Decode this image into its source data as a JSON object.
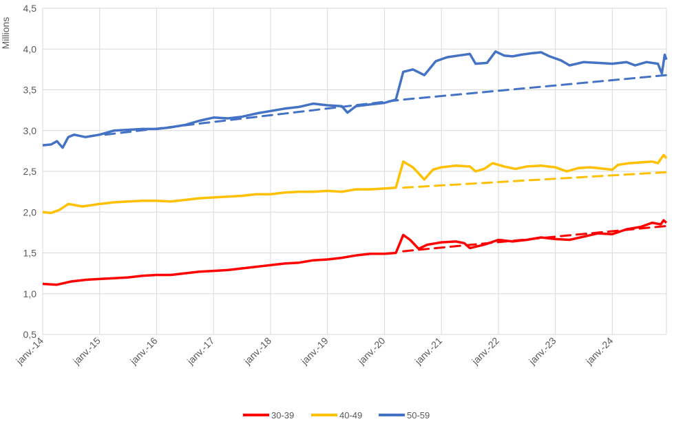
{
  "chart_data": {
    "type": "line",
    "ylabel": "Millions",
    "ylim": [
      0.5,
      4.5
    ],
    "yticks": [
      "0,5",
      "1,0",
      "1,5",
      "2,0",
      "2,5",
      "3,0",
      "3,5",
      "4,0",
      "4,5"
    ],
    "xticks": [
      "janv.-14",
      "janv.-15",
      "janv.-16",
      "janv.-17",
      "janv.-18",
      "janv.-19",
      "janv.-20",
      "janv.-21",
      "janv.-22",
      "janv.-23",
      "janv.-24"
    ],
    "xlim": [
      2014.0,
      2024.95
    ],
    "grid": true,
    "legend_position": "bottom",
    "series": [
      {
        "name": "30-39",
        "color": "#ff0000",
        "points": [
          [
            2014.0,
            1.12
          ],
          [
            2014.25,
            1.11
          ],
          [
            2014.5,
            1.15
          ],
          [
            2014.75,
            1.17
          ],
          [
            2015.0,
            1.18
          ],
          [
            2015.25,
            1.19
          ],
          [
            2015.5,
            1.2
          ],
          [
            2015.75,
            1.22
          ],
          [
            2016.0,
            1.23
          ],
          [
            2016.25,
            1.23
          ],
          [
            2016.5,
            1.25
          ],
          [
            2016.75,
            1.27
          ],
          [
            2017.0,
            1.28
          ],
          [
            2017.25,
            1.29
          ],
          [
            2017.5,
            1.31
          ],
          [
            2017.75,
            1.33
          ],
          [
            2018.0,
            1.35
          ],
          [
            2018.25,
            1.37
          ],
          [
            2018.5,
            1.38
          ],
          [
            2018.75,
            1.41
          ],
          [
            2019.0,
            1.42
          ],
          [
            2019.25,
            1.44
          ],
          [
            2019.5,
            1.47
          ],
          [
            2019.75,
            1.49
          ],
          [
            2020.0,
            1.49
          ],
          [
            2020.2,
            1.5
          ],
          [
            2020.33,
            1.72
          ],
          [
            2020.45,
            1.66
          ],
          [
            2020.6,
            1.55
          ],
          [
            2020.75,
            1.6
          ],
          [
            2021.0,
            1.63
          ],
          [
            2021.25,
            1.64
          ],
          [
            2021.4,
            1.62
          ],
          [
            2021.5,
            1.56
          ],
          [
            2021.75,
            1.6
          ],
          [
            2022.0,
            1.66
          ],
          [
            2022.25,
            1.64
          ],
          [
            2022.5,
            1.66
          ],
          [
            2022.75,
            1.69
          ],
          [
            2023.0,
            1.67
          ],
          [
            2023.25,
            1.66
          ],
          [
            2023.5,
            1.7
          ],
          [
            2023.75,
            1.74
          ],
          [
            2024.0,
            1.73
          ],
          [
            2024.25,
            1.79
          ],
          [
            2024.5,
            1.82
          ],
          [
            2024.7,
            1.87
          ],
          [
            2024.85,
            1.85
          ],
          [
            2024.9,
            1.9
          ],
          [
            2024.95,
            1.87
          ]
        ],
        "trend": [
          [
            2020.33,
            1.52
          ],
          [
            2024.95,
            1.83
          ]
        ]
      },
      {
        "name": "40-49",
        "color": "#ffc000",
        "points": [
          [
            2014.0,
            2.0
          ],
          [
            2014.15,
            1.99
          ],
          [
            2014.3,
            2.03
          ],
          [
            2014.45,
            2.1
          ],
          [
            2014.7,
            2.07
          ],
          [
            2015.0,
            2.1
          ],
          [
            2015.25,
            2.12
          ],
          [
            2015.5,
            2.13
          ],
          [
            2015.75,
            2.14
          ],
          [
            2016.0,
            2.14
          ],
          [
            2016.25,
            2.13
          ],
          [
            2016.5,
            2.15
          ],
          [
            2016.75,
            2.17
          ],
          [
            2017.0,
            2.18
          ],
          [
            2017.25,
            2.19
          ],
          [
            2017.5,
            2.2
          ],
          [
            2017.75,
            2.22
          ],
          [
            2018.0,
            2.22
          ],
          [
            2018.25,
            2.24
          ],
          [
            2018.5,
            2.25
          ],
          [
            2018.75,
            2.25
          ],
          [
            2019.0,
            2.26
          ],
          [
            2019.25,
            2.25
          ],
          [
            2019.5,
            2.28
          ],
          [
            2019.75,
            2.28
          ],
          [
            2020.0,
            2.29
          ],
          [
            2020.2,
            2.3
          ],
          [
            2020.33,
            2.62
          ],
          [
            2020.5,
            2.55
          ],
          [
            2020.7,
            2.4
          ],
          [
            2020.85,
            2.52
          ],
          [
            2021.0,
            2.55
          ],
          [
            2021.25,
            2.57
          ],
          [
            2021.5,
            2.56
          ],
          [
            2021.6,
            2.5
          ],
          [
            2021.75,
            2.53
          ],
          [
            2021.9,
            2.6
          ],
          [
            2022.1,
            2.56
          ],
          [
            2022.3,
            2.53
          ],
          [
            2022.5,
            2.56
          ],
          [
            2022.75,
            2.57
          ],
          [
            2023.0,
            2.55
          ],
          [
            2023.2,
            2.5
          ],
          [
            2023.4,
            2.54
          ],
          [
            2023.6,
            2.55
          ],
          [
            2023.75,
            2.54
          ],
          [
            2024.0,
            2.52
          ],
          [
            2024.1,
            2.58
          ],
          [
            2024.3,
            2.6
          ],
          [
            2024.5,
            2.61
          ],
          [
            2024.7,
            2.62
          ],
          [
            2024.8,
            2.6
          ],
          [
            2024.9,
            2.7
          ],
          [
            2024.95,
            2.66
          ]
        ],
        "trend": [
          [
            2020.33,
            2.3
          ],
          [
            2024.95,
            2.49
          ]
        ]
      },
      {
        "name": "50-59",
        "color": "#4472c4",
        "points": [
          [
            2014.0,
            2.82
          ],
          [
            2014.15,
            2.83
          ],
          [
            2014.25,
            2.87
          ],
          [
            2014.35,
            2.79
          ],
          [
            2014.45,
            2.92
          ],
          [
            2014.55,
            2.95
          ],
          [
            2014.75,
            2.92
          ],
          [
            2015.0,
            2.95
          ],
          [
            2015.25,
            3.0
          ],
          [
            2015.5,
            3.01
          ],
          [
            2015.75,
            3.02
          ],
          [
            2016.0,
            3.02
          ],
          [
            2016.25,
            3.04
          ],
          [
            2016.5,
            3.07
          ],
          [
            2016.75,
            3.12
          ],
          [
            2017.0,
            3.16
          ],
          [
            2017.25,
            3.15
          ],
          [
            2017.5,
            3.17
          ],
          [
            2017.75,
            3.21
          ],
          [
            2018.0,
            3.24
          ],
          [
            2018.25,
            3.27
          ],
          [
            2018.5,
            3.29
          ],
          [
            2018.75,
            3.33
          ],
          [
            2019.0,
            3.31
          ],
          [
            2019.25,
            3.3
          ],
          [
            2019.35,
            3.22
          ],
          [
            2019.5,
            3.3
          ],
          [
            2019.75,
            3.32
          ],
          [
            2020.0,
            3.34
          ],
          [
            2020.2,
            3.38
          ],
          [
            2020.33,
            3.72
          ],
          [
            2020.5,
            3.75
          ],
          [
            2020.7,
            3.68
          ],
          [
            2020.9,
            3.85
          ],
          [
            2021.1,
            3.9
          ],
          [
            2021.3,
            3.92
          ],
          [
            2021.5,
            3.94
          ],
          [
            2021.6,
            3.82
          ],
          [
            2021.8,
            3.83
          ],
          [
            2021.95,
            3.97
          ],
          [
            2022.1,
            3.92
          ],
          [
            2022.25,
            3.91
          ],
          [
            2022.4,
            3.93
          ],
          [
            2022.6,
            3.95
          ],
          [
            2022.75,
            3.96
          ],
          [
            2022.9,
            3.91
          ],
          [
            2023.1,
            3.86
          ],
          [
            2023.25,
            3.8
          ],
          [
            2023.5,
            3.84
          ],
          [
            2023.75,
            3.83
          ],
          [
            2024.0,
            3.82
          ],
          [
            2024.25,
            3.84
          ],
          [
            2024.4,
            3.8
          ],
          [
            2024.6,
            3.84
          ],
          [
            2024.8,
            3.82
          ],
          [
            2024.87,
            3.7
          ],
          [
            2024.92,
            3.93
          ],
          [
            2024.95,
            3.87
          ]
        ],
        "trend": [
          [
            2015.1,
            2.95
          ],
          [
            2020.33,
            3.38
          ],
          [
            2024.95,
            3.68
          ]
        ]
      }
    ]
  }
}
